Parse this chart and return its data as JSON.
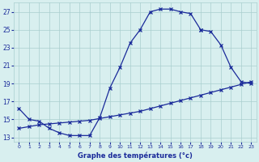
{
  "line1_x": [
    0,
    1,
    2,
    3,
    4,
    5,
    6,
    7,
    8,
    9,
    10,
    11,
    12,
    13,
    14,
    15,
    16,
    17,
    18
  ],
  "line1_y": [
    16.2,
    15.0,
    14.8,
    14.0,
    13.5,
    13.2,
    13.2,
    13.2,
    15.2,
    18.5,
    20.8,
    23.5,
    25.0,
    27.0,
    27.3,
    27.3,
    27.0,
    26.8,
    25.0
  ],
  "line2_x": [
    18,
    19,
    20,
    21,
    22,
    23
  ],
  "line2_y": [
    25.0,
    24.8,
    23.3,
    20.8,
    19.2,
    19.0
  ],
  "line3_x": [
    0,
    1,
    2,
    3,
    4,
    5,
    6,
    7,
    8,
    9,
    10,
    11,
    12,
    13,
    14,
    15,
    16,
    17,
    18,
    19,
    20,
    21,
    22,
    23
  ],
  "line3_y": [
    14.0,
    14.2,
    14.4,
    14.5,
    14.6,
    14.7,
    14.8,
    14.9,
    15.1,
    15.3,
    15.5,
    15.7,
    15.9,
    16.2,
    16.5,
    16.8,
    17.1,
    17.4,
    17.7,
    18.0,
    18.3,
    18.6,
    18.9,
    19.2
  ],
  "bg_color": "#d8efef",
  "grid_color": "#aacfcf",
  "line_color": "#1a2a9a",
  "xlabel": "Graphe des températures (°c)",
  "ylim": [
    12.5,
    28.0
  ],
  "xlim": [
    -0.5,
    23.5
  ],
  "yticks": [
    13,
    15,
    17,
    19,
    21,
    23,
    25,
    27
  ],
  "xticks": [
    0,
    1,
    2,
    3,
    4,
    5,
    6,
    7,
    8,
    9,
    10,
    11,
    12,
    13,
    14,
    15,
    16,
    17,
    18,
    19,
    20,
    21,
    22,
    23
  ],
  "marker_size": 2.5,
  "linewidth": 0.9
}
